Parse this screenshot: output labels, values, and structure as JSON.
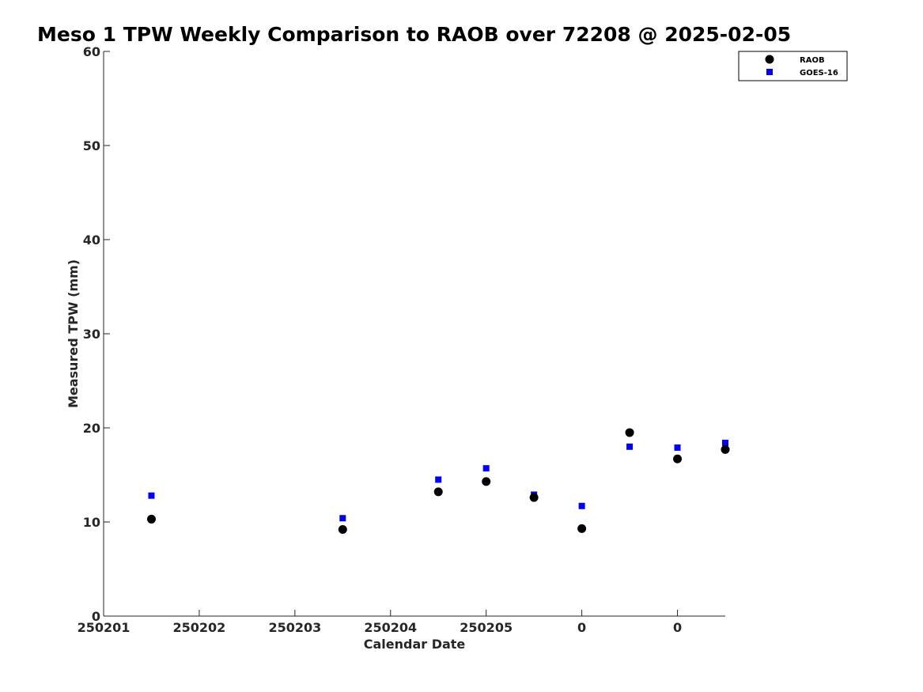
{
  "chart_data": {
    "type": "scatter",
    "title": "Meso 1 TPW Weekly Comparison to RAOB over 72208 @ 2025-02-05",
    "xlabel": "Calendar Date",
    "ylabel": "Measured TPW (mm)",
    "xlim": [
      0,
      6.5
    ],
    "ylim": [
      0,
      60
    ],
    "x_ticks": [
      {
        "pos": 0,
        "label": "250201"
      },
      {
        "pos": 1,
        "label": "250202"
      },
      {
        "pos": 2,
        "label": "250203"
      },
      {
        "pos": 3,
        "label": "250204"
      },
      {
        "pos": 4,
        "label": "250205"
      },
      {
        "pos": 5,
        "label": "0"
      },
      {
        "pos": 6,
        "label": "0"
      }
    ],
    "y_ticks": [
      0,
      10,
      20,
      30,
      40,
      50,
      60
    ],
    "legend_position": "top-right",
    "series": [
      {
        "name": "RAOB",
        "marker": "circle",
        "color": "#000000",
        "x": [
          0.5,
          2.5,
          3.5,
          4.0,
          4.5,
          5.0,
          5.5,
          6.0,
          6.5
        ],
        "y": [
          10.3,
          9.2,
          13.2,
          14.3,
          12.6,
          9.3,
          19.5,
          16.7,
          17.7
        ]
      },
      {
        "name": "GOES-16",
        "marker": "square",
        "color": "#0000ee",
        "x": [
          0.5,
          2.5,
          3.5,
          4.0,
          4.5,
          5.0,
          5.5,
          6.0,
          6.5
        ],
        "y": [
          12.8,
          10.4,
          14.5,
          15.7,
          12.9,
          11.7,
          18.0,
          17.9,
          18.4
        ]
      }
    ]
  }
}
